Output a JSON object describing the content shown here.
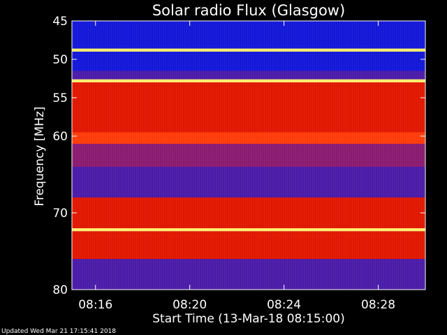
{
  "chart_data": {
    "type": "heatmap",
    "title": "Solar radio Flux (Glasgow)",
    "ylabel": "Frequency [MHz]",
    "xlabel": "Start Time (13-Mar-18 08:15:00)",
    "y_axis": {
      "min": 45,
      "max": 80,
      "ticks": [
        "45",
        "50",
        "55",
        "60",
        "70",
        "80"
      ],
      "tick_values": [
        45,
        50,
        55,
        60,
        70,
        80
      ]
    },
    "x_axis": {
      "ticks": [
        "08:16",
        "08:20",
        "08:24",
        "08:28"
      ],
      "tick_minutes": [
        1,
        5,
        9,
        13
      ],
      "range_minutes": [
        0,
        15
      ]
    },
    "colormap": {
      "low": "#0a14d8",
      "mid": "#ff1a00",
      "high": "#ffff80"
    },
    "bands": [
      {
        "freq": [
          45.0,
          47.0
        ],
        "intensity": "low"
      },
      {
        "freq": [
          47.0,
          48.6
        ],
        "intensity": "low"
      },
      {
        "freq": [
          48.6,
          49.0
        ],
        "intensity": "high"
      },
      {
        "freq": [
          49.0,
          51.5
        ],
        "intensity": "low"
      },
      {
        "freq": [
          51.5,
          52.6
        ],
        "intensity": "low-mid"
      },
      {
        "freq": [
          52.6,
          53.0
        ],
        "intensity": "high"
      },
      {
        "freq": [
          53.0,
          59.5
        ],
        "intensity": "mid"
      },
      {
        "freq": [
          59.5,
          61.0
        ],
        "intensity": "mid-high"
      },
      {
        "freq": [
          61.0,
          64.0
        ],
        "intensity": "mid-low"
      },
      {
        "freq": [
          64.0,
          68.0
        ],
        "intensity": "low-mid"
      },
      {
        "freq": [
          68.0,
          72.0
        ],
        "intensity": "mid"
      },
      {
        "freq": [
          72.0,
          72.4
        ],
        "intensity": "high"
      },
      {
        "freq": [
          72.4,
          76.0
        ],
        "intensity": "mid"
      },
      {
        "freq": [
          76.0,
          80.0
        ],
        "intensity": "low-mid"
      }
    ]
  },
  "footer": {
    "updated": "Updated Wed Mar 21 17:15:41 2018"
  }
}
